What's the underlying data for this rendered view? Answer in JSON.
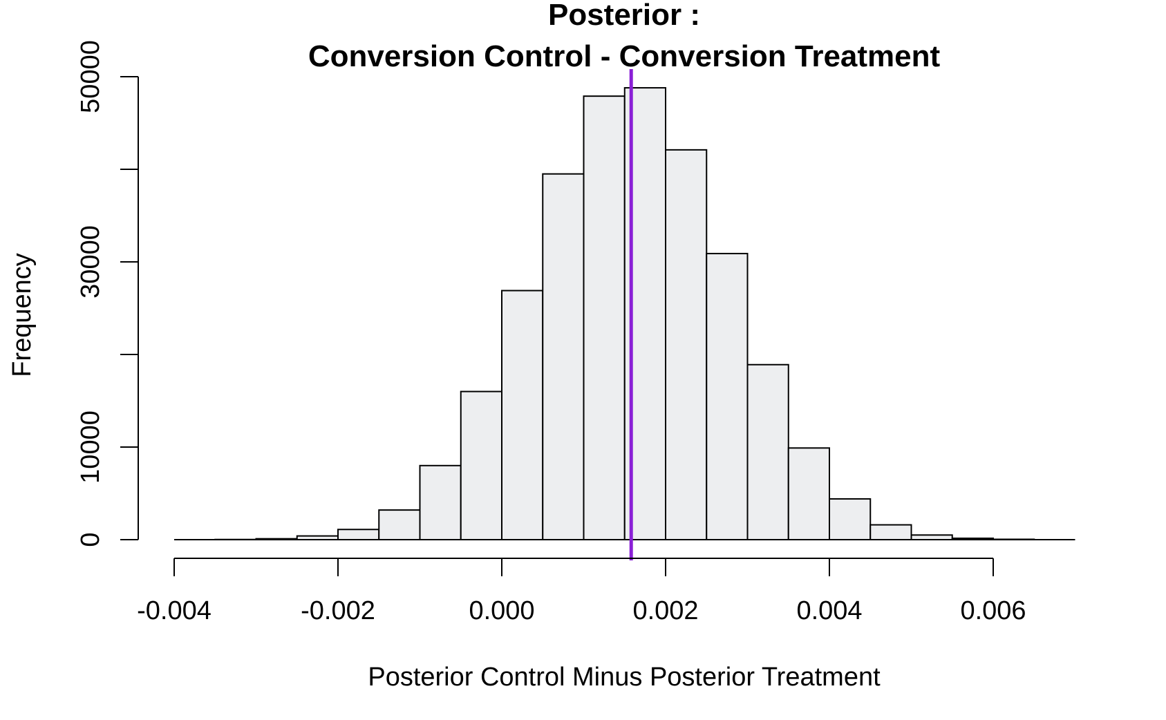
{
  "chart_data": {
    "type": "bar",
    "title_line1": "Posterior :",
    "title_line2": "Conversion Control - Conversion Treatment",
    "xlabel": "Posterior Control Minus Posterior Treatment",
    "ylabel": "Frequency",
    "bins": [
      {
        "x0": -0.004,
        "x1": -0.0035,
        "count": 0
      },
      {
        "x0": -0.0035,
        "x1": -0.003,
        "count": 20
      },
      {
        "x0": -0.003,
        "x1": -0.0025,
        "count": 100
      },
      {
        "x0": -0.0025,
        "x1": -0.002,
        "count": 400
      },
      {
        "x0": -0.002,
        "x1": -0.0015,
        "count": 1100
      },
      {
        "x0": -0.0015,
        "x1": -0.001,
        "count": 3200
      },
      {
        "x0": -0.001,
        "x1": -0.0005,
        "count": 8000
      },
      {
        "x0": -0.0005,
        "x1": 0.0,
        "count": 16000
      },
      {
        "x0": 0.0,
        "x1": 0.0005,
        "count": 26900
      },
      {
        "x0": 0.0005,
        "x1": 0.001,
        "count": 39500
      },
      {
        "x0": 0.001,
        "x1": 0.0015,
        "count": 47900
      },
      {
        "x0": 0.0015,
        "x1": 0.002,
        "count": 48800
      },
      {
        "x0": 0.002,
        "x1": 0.0025,
        "count": 42100
      },
      {
        "x0": 0.0025,
        "x1": 0.003,
        "count": 30900
      },
      {
        "x0": 0.003,
        "x1": 0.0035,
        "count": 18900
      },
      {
        "x0": 0.0035,
        "x1": 0.004,
        "count": 9900
      },
      {
        "x0": 0.004,
        "x1": 0.0045,
        "count": 4400
      },
      {
        "x0": 0.0045,
        "x1": 0.005,
        "count": 1600
      },
      {
        "x0": 0.005,
        "x1": 0.0055,
        "count": 500
      },
      {
        "x0": 0.0055,
        "x1": 0.006,
        "count": 150
      },
      {
        "x0": 0.006,
        "x1": 0.0065,
        "count": 40
      },
      {
        "x0": 0.0065,
        "x1": 0.007,
        "count": 0
      }
    ],
    "xlim": [
      -0.004,
      0.007
    ],
    "ylim": [
      0,
      50000
    ],
    "x_ticks": [
      -0.004,
      -0.002,
      0.0,
      0.002,
      0.004,
      0.006
    ],
    "x_tick_labels": [
      "-0.004",
      "-0.002",
      "0.000",
      "0.002",
      "0.004",
      "0.006"
    ],
    "y_ticks": [
      0,
      10000,
      20000,
      30000,
      40000,
      50000
    ],
    "y_tick_labels": [
      "0",
      "10000",
      "",
      "30000",
      "",
      "50000"
    ],
    "reference_line": {
      "x": 0.00158,
      "color": "#8A1FD6"
    },
    "bar_fill": "#EDEEF0",
    "grid": false
  }
}
